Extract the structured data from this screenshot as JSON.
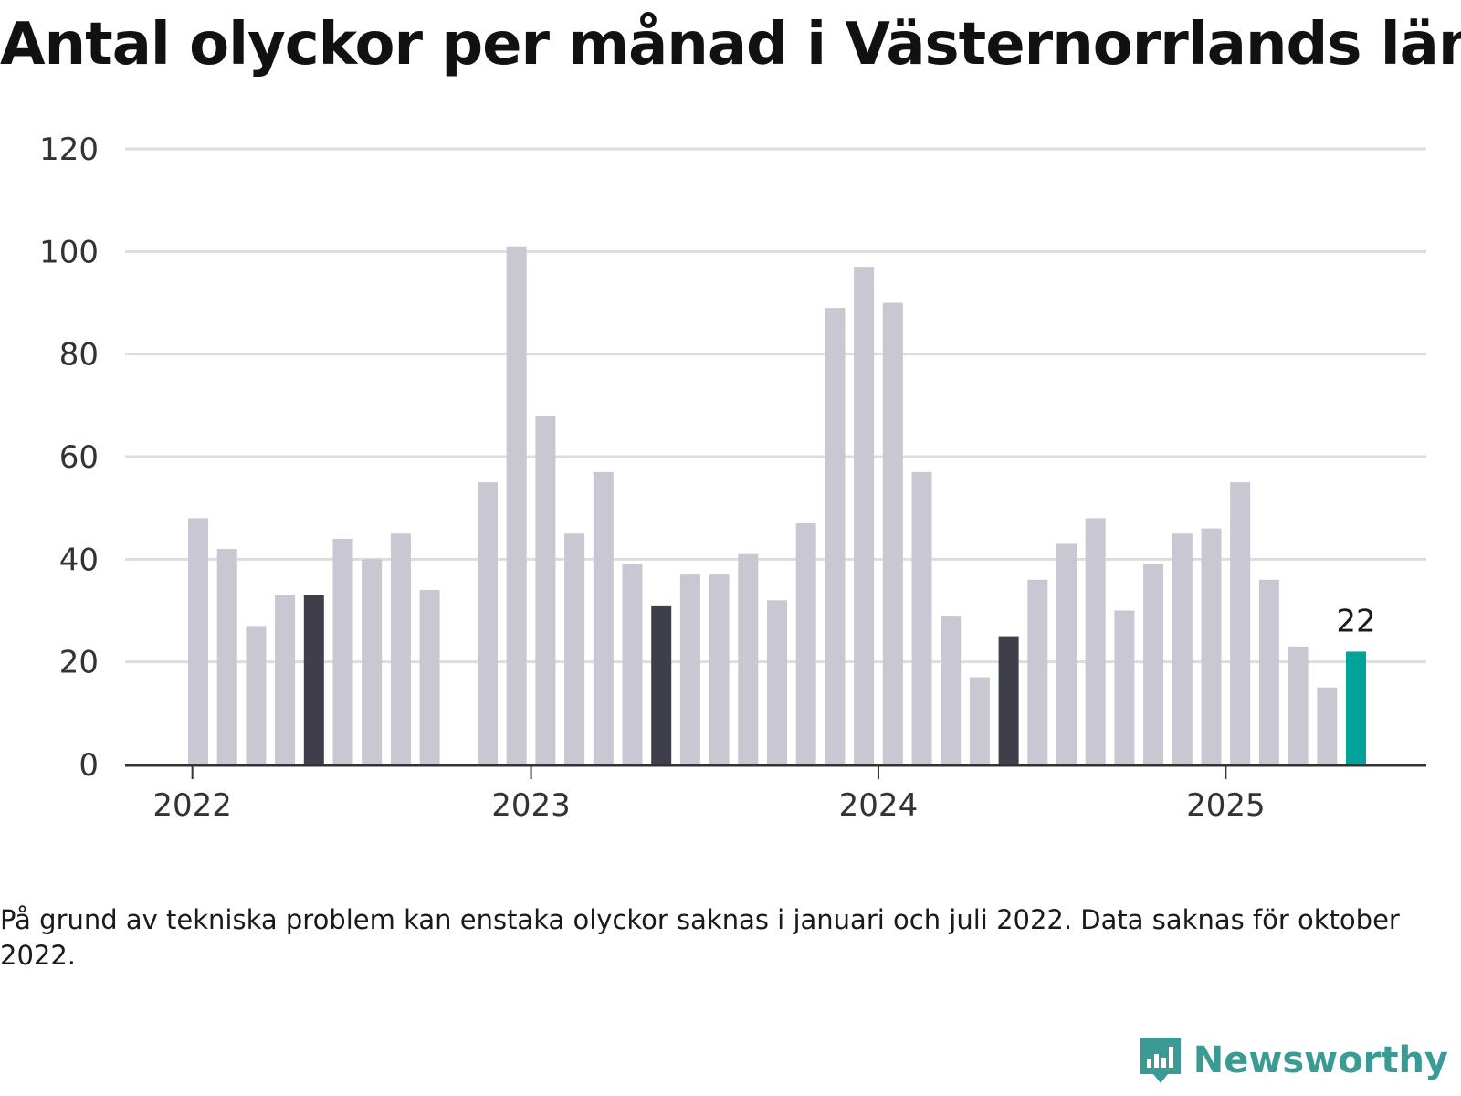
{
  "title": "Antal olyckor per månad i Västernorrlands län",
  "note": "På grund av tekniska problem kan enstaka olyckor saknas i januari och juli 2022. Data saknas för oktober 2022.",
  "brand": {
    "name": "Newsworthy",
    "icon": "newsworthy-logo-icon",
    "color": "#3a9a94"
  },
  "colors": {
    "bar": "#c8c7d2",
    "highlight": "#3f3e4b",
    "latest": "#00a29a",
    "grid": "#dddddd",
    "axis": "#333333"
  },
  "chart_data": {
    "type": "bar",
    "ylim": [
      0,
      120
    ],
    "yticks": [
      0,
      20,
      40,
      60,
      80,
      100,
      120
    ],
    "xtick_labels": [
      "2022",
      "2023",
      "2024",
      "2025"
    ],
    "grid": true,
    "value_label": "22",
    "months": [
      "2022-01",
      "2022-02",
      "2022-03",
      "2022-04",
      "2022-05",
      "2022-06",
      "2022-07",
      "2022-08",
      "2022-09",
      "2022-10",
      "2022-11",
      "2022-12",
      "2023-01",
      "2023-02",
      "2023-03",
      "2023-04",
      "2023-05",
      "2023-06",
      "2023-07",
      "2023-08",
      "2023-09",
      "2023-10",
      "2023-11",
      "2023-12",
      "2024-01",
      "2024-02",
      "2024-03",
      "2024-04",
      "2024-05",
      "2024-06",
      "2024-07",
      "2024-08",
      "2024-09",
      "2024-10",
      "2024-11",
      "2024-12",
      "2025-01",
      "2025-02",
      "2025-03",
      "2025-04",
      "2025-05"
    ],
    "values": [
      48,
      42,
      27,
      33,
      33,
      44,
      40,
      45,
      34,
      null,
      55,
      101,
      68,
      45,
      57,
      39,
      31,
      37,
      37,
      41,
      32,
      47,
      89,
      97,
      90,
      57,
      29,
      17,
      25,
      36,
      43,
      48,
      30,
      39,
      45,
      46,
      55,
      36,
      23,
      15,
      22
    ],
    "highlighted_months": [
      "2022-05",
      "2023-05",
      "2024-05"
    ],
    "latest_month": "2025-05"
  }
}
